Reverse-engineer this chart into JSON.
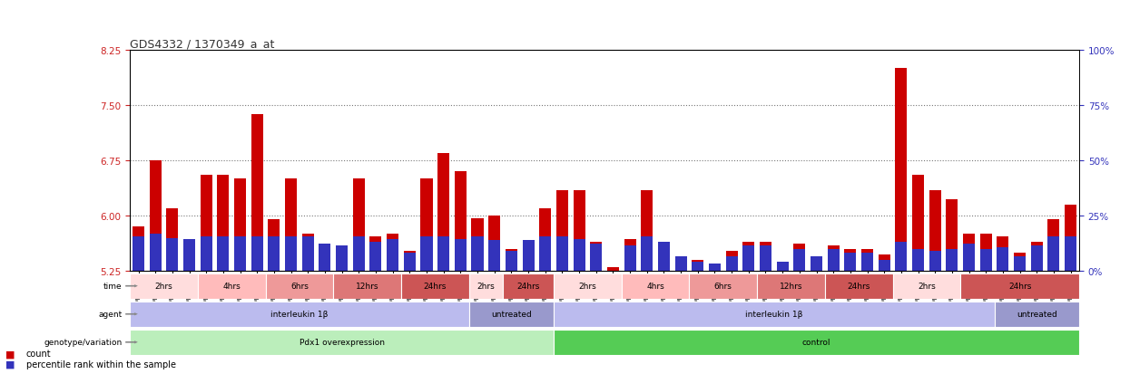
{
  "title": "GDS4332 / 1370349_a_at",
  "ylim_left": [
    5.25,
    8.25
  ],
  "ylim_right": [
    0,
    100
  ],
  "yticks_left": [
    5.25,
    6.0,
    6.75,
    7.5,
    8.25
  ],
  "yticks_right": [
    0,
    25,
    50,
    75,
    100
  ],
  "hlines": [
    6.0,
    6.75,
    7.5
  ],
  "samples": [
    "GSM998740",
    "GSM998753",
    "GSM998766",
    "GSM998774",
    "GSM998729",
    "GSM998754",
    "GSM998767",
    "GSM998775",
    "GSM998741",
    "GSM998755",
    "GSM998768",
    "GSM998776",
    "GSM998730",
    "GSM998742",
    "GSM998747",
    "GSM998777",
    "GSM998731",
    "GSM998748",
    "GSM998756",
    "GSM998769",
    "GSM998732",
    "GSM998749",
    "GSM998757",
    "GSM998778",
    "GSM998733",
    "GSM998758",
    "GSM998770",
    "GSM998779",
    "GSM998734",
    "GSM998743",
    "GSM998759",
    "GSM998780",
    "GSM998735",
    "GSM998750",
    "GSM998760",
    "GSM998782",
    "GSM998744",
    "GSM998751",
    "GSM998761",
    "GSM998771",
    "GSM998736",
    "GSM998745",
    "GSM998762",
    "GSM998781",
    "GSM998737",
    "GSM998752",
    "GSM998763",
    "GSM998772",
    "GSM998738",
    "GSM998764",
    "GSM998773",
    "GSM998783",
    "GSM998739",
    "GSM998746",
    "GSM998765",
    "GSM998784"
  ],
  "bar_heights": [
    5.85,
    6.75,
    6.1,
    5.38,
    6.55,
    6.55,
    6.5,
    7.38,
    5.95,
    6.5,
    5.75,
    5.6,
    5.6,
    6.5,
    5.72,
    5.75,
    5.52,
    6.5,
    6.85,
    6.6,
    5.97,
    6.0,
    5.55,
    5.67,
    6.1,
    6.35,
    6.35,
    5.65,
    5.3,
    5.68,
    6.35,
    5.65,
    5.45,
    5.4,
    5.35,
    5.52,
    5.65,
    5.65,
    5.38,
    5.62,
    5.45,
    5.6,
    5.55,
    5.55,
    5.47,
    8.0,
    6.55,
    6.35,
    6.22,
    5.75,
    5.75,
    5.72,
    5.5,
    5.65,
    5.95,
    6.15
  ],
  "blue_heights": [
    5.72,
    5.75,
    5.7,
    5.68,
    5.72,
    5.72,
    5.72,
    5.72,
    5.72,
    5.72,
    5.72,
    5.62,
    5.6,
    5.72,
    5.65,
    5.68,
    5.5,
    5.72,
    5.72,
    5.68,
    5.72,
    5.67,
    5.52,
    5.67,
    5.72,
    5.72,
    5.68,
    5.62,
    5.25,
    5.6,
    5.72,
    5.65,
    5.45,
    5.38,
    5.35,
    5.45,
    5.6,
    5.6,
    5.38,
    5.55,
    5.45,
    5.55,
    5.5,
    5.5,
    5.4,
    5.65,
    5.55,
    5.52,
    5.55,
    5.62,
    5.55,
    5.57,
    5.45,
    5.6,
    5.72,
    5.72
  ],
  "bar_color": "#cc0000",
  "blue_color": "#3333bb",
  "bg_color": "#ffffff",
  "hline_color": "#777777",
  "left_axis_color": "#cc2222",
  "right_axis_color": "#3333bb",
  "title_color": "#333333",
  "genotype_groups": [
    {
      "label": "Pdx1 overexpression",
      "start": 0,
      "end": 25,
      "color": "#bbeebb"
    },
    {
      "label": "control",
      "start": 25,
      "end": 56,
      "color": "#55cc55"
    }
  ],
  "agent_groups": [
    {
      "label": "interleukin 1β",
      "start": 0,
      "end": 20,
      "color": "#bbbbee"
    },
    {
      "label": "untreated",
      "start": 20,
      "end": 25,
      "color": "#9999cc"
    },
    {
      "label": "interleukin 1β",
      "start": 25,
      "end": 51,
      "color": "#bbbbee"
    },
    {
      "label": "untreated",
      "start": 51,
      "end": 56,
      "color": "#9999cc"
    }
  ],
  "time_groups": [
    {
      "label": "2hrs",
      "start": 0,
      "end": 4,
      "color": "#ffdddd"
    },
    {
      "label": "4hrs",
      "start": 4,
      "end": 8,
      "color": "#ffbbbb"
    },
    {
      "label": "6hrs",
      "start": 8,
      "end": 12,
      "color": "#ee9999"
    },
    {
      "label": "12hrs",
      "start": 12,
      "end": 16,
      "color": "#dd7777"
    },
    {
      "label": "24hrs",
      "start": 16,
      "end": 20,
      "color": "#cc5555"
    },
    {
      "label": "2hrs",
      "start": 20,
      "end": 22,
      "color": "#ffdddd"
    },
    {
      "label": "24hrs",
      "start": 22,
      "end": 25,
      "color": "#cc5555"
    },
    {
      "label": "2hrs",
      "start": 25,
      "end": 29,
      "color": "#ffdddd"
    },
    {
      "label": "4hrs",
      "start": 29,
      "end": 33,
      "color": "#ffbbbb"
    },
    {
      "label": "6hrs",
      "start": 33,
      "end": 37,
      "color": "#ee9999"
    },
    {
      "label": "12hrs",
      "start": 37,
      "end": 41,
      "color": "#dd7777"
    },
    {
      "label": "24hrs",
      "start": 41,
      "end": 45,
      "color": "#cc5555"
    },
    {
      "label": "2hrs",
      "start": 45,
      "end": 49,
      "color": "#ffdddd"
    },
    {
      "label": "24hrs",
      "start": 49,
      "end": 56,
      "color": "#cc5555"
    }
  ],
  "row_labels": [
    "genotype/variation",
    "agent",
    "time"
  ],
  "legend_items": [
    {
      "color": "#cc0000",
      "label": "count"
    },
    {
      "color": "#3333bb",
      "label": "percentile rank within the sample"
    }
  ]
}
